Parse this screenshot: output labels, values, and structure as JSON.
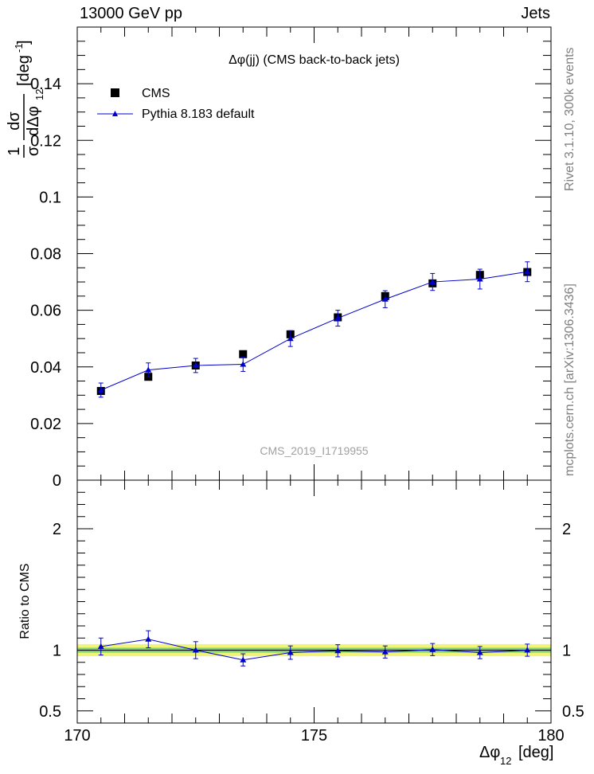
{
  "header": {
    "left": "13000 GeV pp",
    "right": "Jets"
  },
  "side_labels": {
    "rivet": "Rivet 3.1.10,  300k events",
    "url": "mcplots.cern.ch [arXiv:1306.3436]"
  },
  "chart_data": [
    {
      "type": "scatter",
      "title": "Δφ(jj) (CMS back-to-back jets)",
      "analysis_label": "CMS_2019_I1719955",
      "ylabel": "1/σ dσ/dΔφ12 [deg-1]",
      "ylabel_parts": {
        "frac_num": "1",
        "frac_den": "σ",
        "d_num": "dσ",
        "d_den": "dΔφ",
        "d_den_sub": "12",
        "unit": "[deg",
        "unit_sup": "-1",
        "unit_close": "]"
      },
      "xlim": [
        170,
        180
      ],
      "ylim": [
        0,
        0.16
      ],
      "yticks": [
        0,
        0.02,
        0.04,
        0.06,
        0.08,
        0.1,
        0.12,
        0.14
      ],
      "ytick_labels": [
        "0",
        "0.02",
        "0.04",
        "0.06",
        "0.08",
        "0.1",
        "0.12",
        "0.14"
      ],
      "legend": {
        "placement": "top-left",
        "entries": [
          {
            "label": "CMS",
            "marker": "square",
            "color": "#000000"
          },
          {
            "label": "Pythia 8.183 default",
            "marker": "triangle",
            "color": "#0000cc"
          }
        ]
      },
      "series": [
        {
          "name": "CMS",
          "x": [
            170.5,
            171.5,
            172.5,
            173.5,
            174.5,
            175.5,
            176.5,
            177.5,
            178.5,
            179.5
          ],
          "values": [
            0.0315,
            0.0365,
            0.0405,
            0.0445,
            0.0515,
            0.0575,
            0.065,
            0.0695,
            0.0725,
            0.0735
          ],
          "errors": [
            0.001,
            0.001,
            0.001,
            0.001,
            0.001,
            0.001,
            0.001,
            0.001,
            0.001,
            0.001
          ]
        },
        {
          "name": "Pythia 8.183 default",
          "x": [
            170.5,
            171.5,
            172.5,
            173.5,
            174.5,
            175.5,
            176.5,
            177.5,
            178.5,
            179.5
          ],
          "values": [
            0.0318,
            0.0389,
            0.0405,
            0.0409,
            0.05,
            0.0572,
            0.0639,
            0.07,
            0.071,
            0.0736
          ],
          "errors": [
            0.0025,
            0.0025,
            0.0025,
            0.0025,
            0.0028,
            0.0028,
            0.003,
            0.003,
            0.0035,
            0.0035
          ]
        }
      ]
    },
    {
      "type": "scatter",
      "title": "",
      "ylabel": "Ratio to CMS",
      "xlabel": "Δφ12 [deg]",
      "xlabel_parts": {
        "main": "Δφ",
        "sub": "12",
        "unit": "[deg]"
      },
      "xlim": [
        170,
        180
      ],
      "ylim": [
        0.4,
        2.4
      ],
      "xticks": [
        170,
        175,
        180
      ],
      "xtick_labels": [
        "170",
        "175",
        "180"
      ],
      "yticks": [
        0.5,
        1,
        2
      ],
      "ytick_labels": [
        "0.5",
        "1",
        "2"
      ],
      "bands": {
        "inner": 0.02,
        "outer": 0.05,
        "inner_color": "#7fd36f",
        "outer_color": "#f0f57a"
      },
      "series": [
        {
          "name": "Pythia 8.183 default",
          "x": [
            170.5,
            171.5,
            172.5,
            173.5,
            174.5,
            175.5,
            176.5,
            177.5,
            178.5,
            179.5
          ],
          "values": [
            1.03,
            1.09,
            1.0,
            0.92,
            0.98,
            0.995,
            0.985,
            1.005,
            0.98,
            1.0
          ],
          "errors": [
            0.07,
            0.07,
            0.07,
            0.05,
            0.055,
            0.05,
            0.05,
            0.05,
            0.05,
            0.05
          ]
        }
      ]
    }
  ]
}
